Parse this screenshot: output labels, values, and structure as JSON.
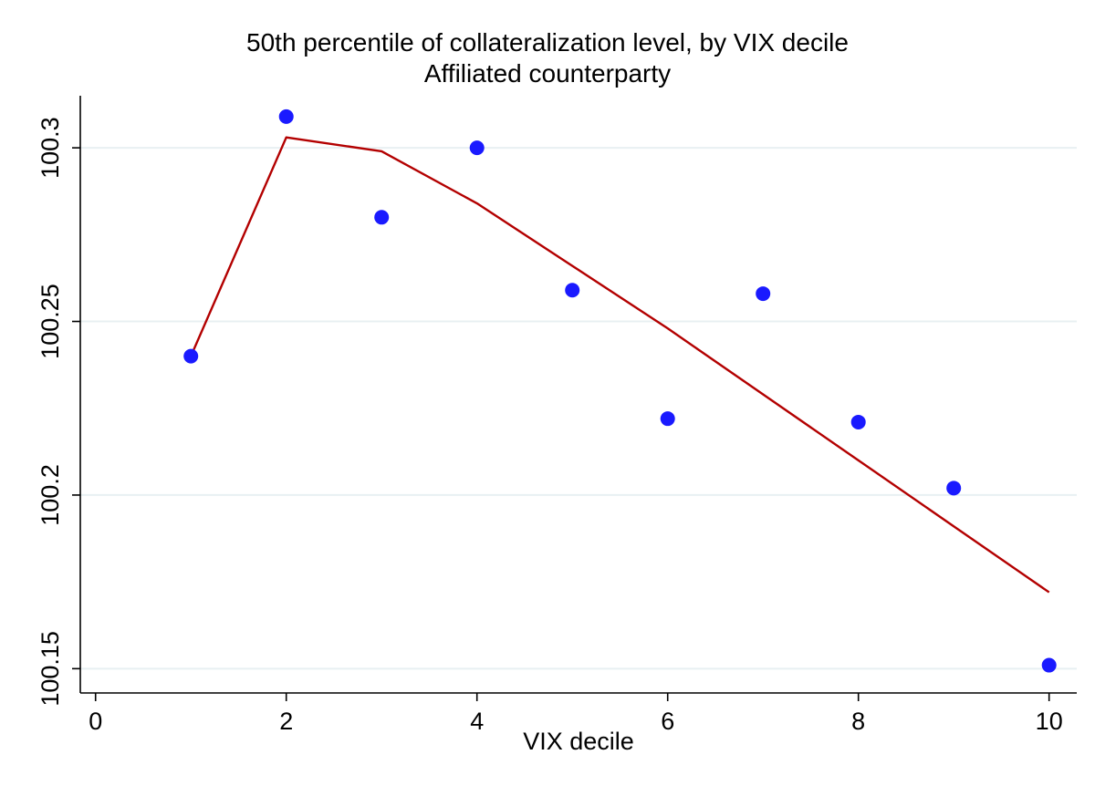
{
  "chart_data": {
    "type": "scatter",
    "title": "50th percentile of collateralization level, by VIX decile",
    "subtitle": "Affiliated counterparty",
    "xlabel": "VIX decile",
    "ylabel": "",
    "xlim": [
      -0.16,
      10.29
    ],
    "ylim": [
      100.143,
      100.315
    ],
    "x_ticks": [
      0,
      2,
      4,
      6,
      8,
      10
    ],
    "x_tick_labels": [
      "0",
      "2",
      "4",
      "6",
      "8",
      "10"
    ],
    "y_ticks": [
      100.15,
      100.2,
      100.25,
      100.3
    ],
    "y_tick_labels": [
      "100.15",
      "100.2",
      "100.25",
      "100.3"
    ],
    "grid": true,
    "legend_position": "none",
    "grid_color": "#e8f0f2",
    "axis_color": "#000000",
    "series": [
      {
        "name": "fitted-trend-line",
        "type": "line",
        "color": "#b30000",
        "x": [
          1,
          2,
          3,
          4,
          5,
          6,
          7,
          8,
          9,
          10
        ],
        "y": [
          100.24,
          100.303,
          100.299,
          100.284,
          100.266,
          100.248,
          100.229,
          100.21,
          100.191,
          100.172
        ]
      },
      {
        "name": "median-collateralization-by-decile",
        "type": "scatter",
        "color": "#1a1aff",
        "x": [
          1,
          2,
          3,
          4,
          5,
          6,
          7,
          8,
          9,
          10
        ],
        "y": [
          100.24,
          100.309,
          100.28,
          100.3,
          100.259,
          100.222,
          100.258,
          100.221,
          100.202,
          100.151
        ]
      }
    ]
  }
}
